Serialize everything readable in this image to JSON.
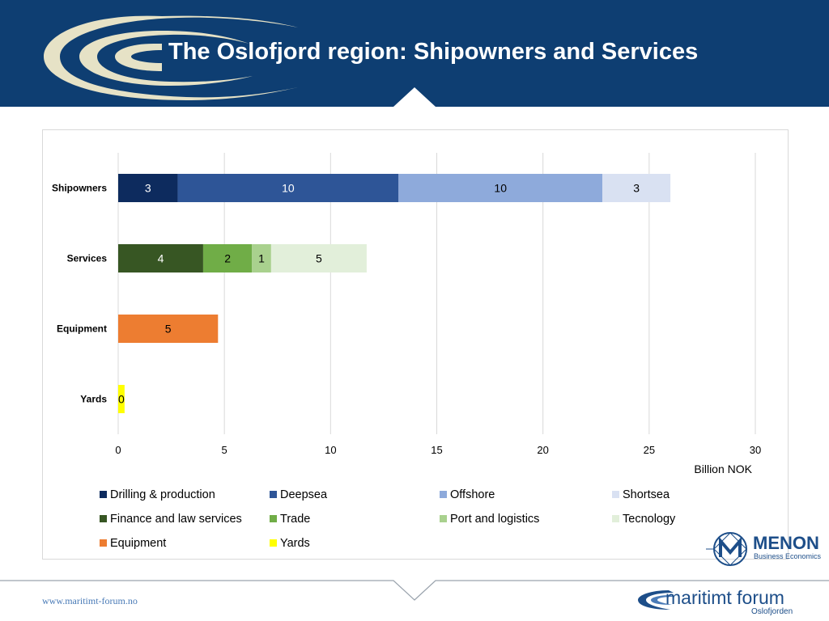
{
  "header": {
    "title": "The Oslofjord region: Shipowners and Services"
  },
  "colors": {
    "header_bg": "#0e3e72",
    "logo_cream": "#e6e2c6"
  },
  "chart_data": {
    "type": "bar",
    "orientation": "horizontal",
    "stacked": true,
    "categories": [
      "Shipowners",
      "Services",
      "Equipment",
      "Yards"
    ],
    "xlabel": "Billion NOK",
    "xlim": [
      0,
      30
    ],
    "xticks": [
      0,
      5,
      10,
      15,
      20,
      25,
      30
    ],
    "grid": true,
    "legend_position": "bottom",
    "segments": [
      {
        "category": "Shipowners",
        "name": "Drilling & production",
        "value": 2.8,
        "label": "3",
        "color": "#0d2b5e",
        "label_color": "#ffffff"
      },
      {
        "category": "Shipowners",
        "name": "Deepsea",
        "value": 10.4,
        "label": "10",
        "color": "#2e5597",
        "label_color": "#ffffff"
      },
      {
        "category": "Shipowners",
        "name": "Offshore",
        "value": 9.6,
        "label": "10",
        "color": "#8eaadb",
        "label_color": "#000000"
      },
      {
        "category": "Shipowners",
        "name": "Shortsea",
        "value": 3.2,
        "label": "3",
        "color": "#d9e1f2",
        "label_color": "#000000"
      },
      {
        "category": "Services",
        "name": "Finance and law services",
        "value": 4.0,
        "label": "4",
        "color": "#375623",
        "label_color": "#ffffff"
      },
      {
        "category": "Services",
        "name": "Trade",
        "value": 2.3,
        "label": "2",
        "color": "#70ad47",
        "label_color": "#000000"
      },
      {
        "category": "Services",
        "name": "Port and logistics",
        "value": 0.9,
        "label": "1",
        "color": "#a9d18e",
        "label_color": "#000000"
      },
      {
        "category": "Services",
        "name": "Tecnology",
        "value": 4.5,
        "label": "5",
        "color": "#e2efda",
        "label_color": "#000000"
      },
      {
        "category": "Equipment",
        "name": "Equipment",
        "value": 4.7,
        "label": "5",
        "color": "#ed7d31",
        "label_color": "#000000"
      },
      {
        "category": "Yards",
        "name": "Yards",
        "value": 0.3,
        "label": "0",
        "color": "#ffff00",
        "label_color": "#000000"
      }
    ],
    "legend": [
      {
        "name": "Drilling & production",
        "color": "#0d2b5e"
      },
      {
        "name": "Deepsea",
        "color": "#2e5597"
      },
      {
        "name": "Offshore",
        "color": "#8eaadb"
      },
      {
        "name": "Shortsea",
        "color": "#d9e1f2"
      },
      {
        "name": "Finance and law services",
        "color": "#375623"
      },
      {
        "name": "Trade",
        "color": "#70ad47"
      },
      {
        "name": "Port and logistics",
        "color": "#a9d18e"
      },
      {
        "name": "Tecnology",
        "color": "#e2efda"
      },
      {
        "name": "Equipment",
        "color": "#ed7d31"
      },
      {
        "name": "Yards",
        "color": "#ffff00"
      }
    ]
  },
  "logos": {
    "menon_name": "MENON",
    "menon_sub": "Business Economics",
    "menon_icon": "menon-m-diamond-icon",
    "maritimt_name": "maritimt forum",
    "maritimt_sub": "Oslofjorden",
    "maritimt_icon": "maritimt-swoosh-icon"
  },
  "footer": {
    "url": "www.maritimt-forum.no"
  }
}
